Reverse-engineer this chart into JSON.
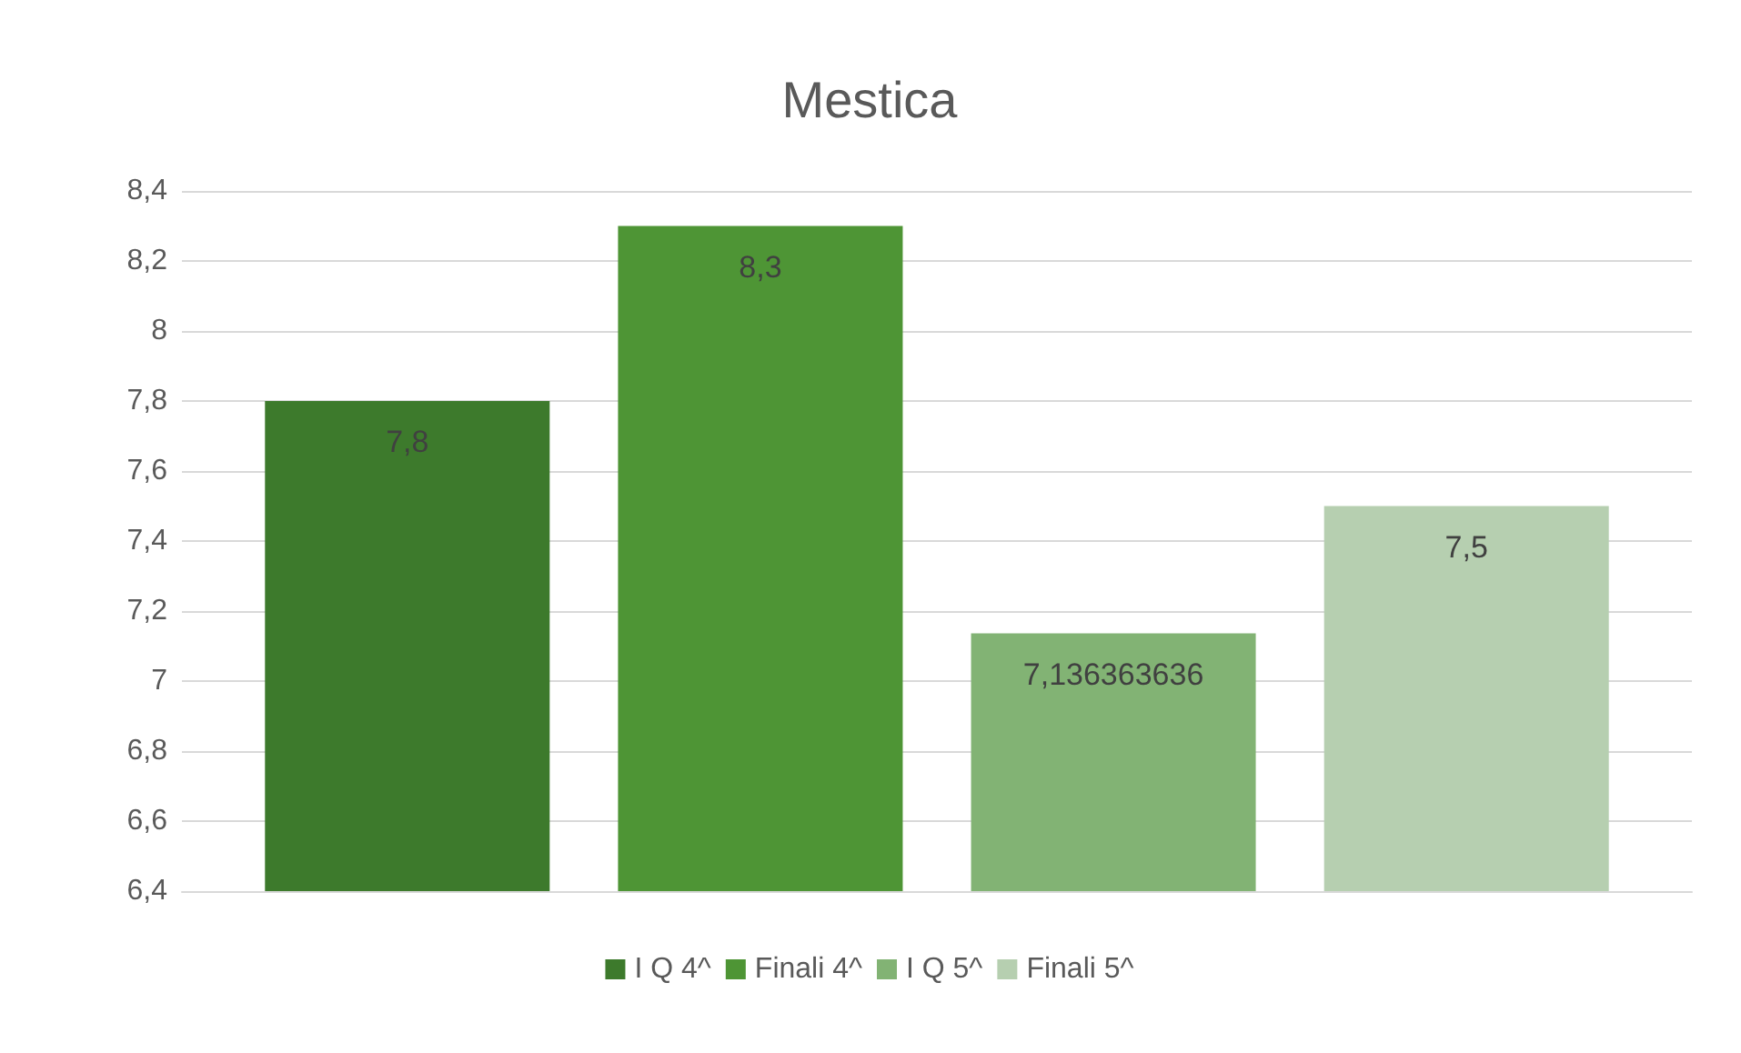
{
  "chart_data": {
    "type": "bar",
    "title": "Mestica",
    "categories": [
      null
    ],
    "series": [
      {
        "name": "I Q 4^",
        "color": "#3d7a2c",
        "values": [
          7.8
        ],
        "value_labels": [
          "7,8"
        ]
      },
      {
        "name": "Finali 4^",
        "color": "#4e9535",
        "values": [
          8.3
        ],
        "value_labels": [
          "8,3"
        ]
      },
      {
        "name": "I Q 5^",
        "color": "#82b374",
        "values": [
          7.136363636
        ],
        "value_labels": [
          "7,136363636"
        ]
      },
      {
        "name": "Finali 5^",
        "color": "#b6cfb0",
        "values": [
          7.5
        ],
        "value_labels": [
          "7,5"
        ]
      }
    ],
    "ylim": [
      6.4,
      8.4
    ],
    "yticks": [
      {
        "value": 6.4,
        "label": "6,4"
      },
      {
        "value": 6.6,
        "label": "6,6"
      },
      {
        "value": 6.8,
        "label": "6,8"
      },
      7,
      {
        "value": 7.2,
        "label": "7,2"
      },
      {
        "value": 7.4,
        "label": "7,4"
      },
      {
        "value": 7.6,
        "label": "7,6"
      },
      {
        "value": 7.8,
        "label": "7,8"
      },
      8,
      {
        "value": 8.2,
        "label": "8,2"
      },
      {
        "value": 8.4,
        "label": "8,4"
      }
    ],
    "grid": "y",
    "legend": "bottom"
  }
}
